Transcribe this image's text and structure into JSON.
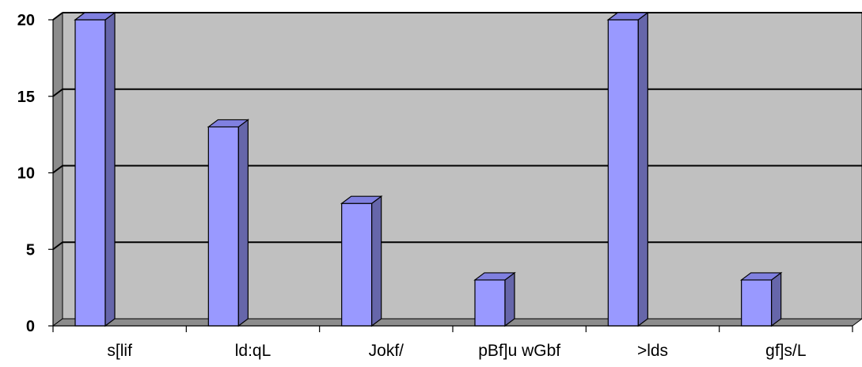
{
  "chart_data": {
    "type": "bar",
    "categories": [
      "s[lif",
      "ld:qL",
      "Jokf/",
      "pBf]u wGbf",
      ">lds",
      "gf]s/L"
    ],
    "values": [
      20,
      13,
      8,
      3,
      20,
      3
    ],
    "title": "",
    "xlabel": "",
    "ylabel": "",
    "ylim": [
      0,
      20
    ],
    "yticks": [
      0,
      5,
      10,
      15,
      20
    ],
    "grid": true,
    "legend": "none",
    "three_d": true
  },
  "colors": {
    "bar_front": "#9999ff",
    "bar_side": "#6666aa",
    "bar_top": "#8080e0",
    "plot_wall": "#c0c0c0",
    "plot_side_wall": "#8c8c8c",
    "plot_floor": "#8c8c8c",
    "gridline": "#000000"
  }
}
